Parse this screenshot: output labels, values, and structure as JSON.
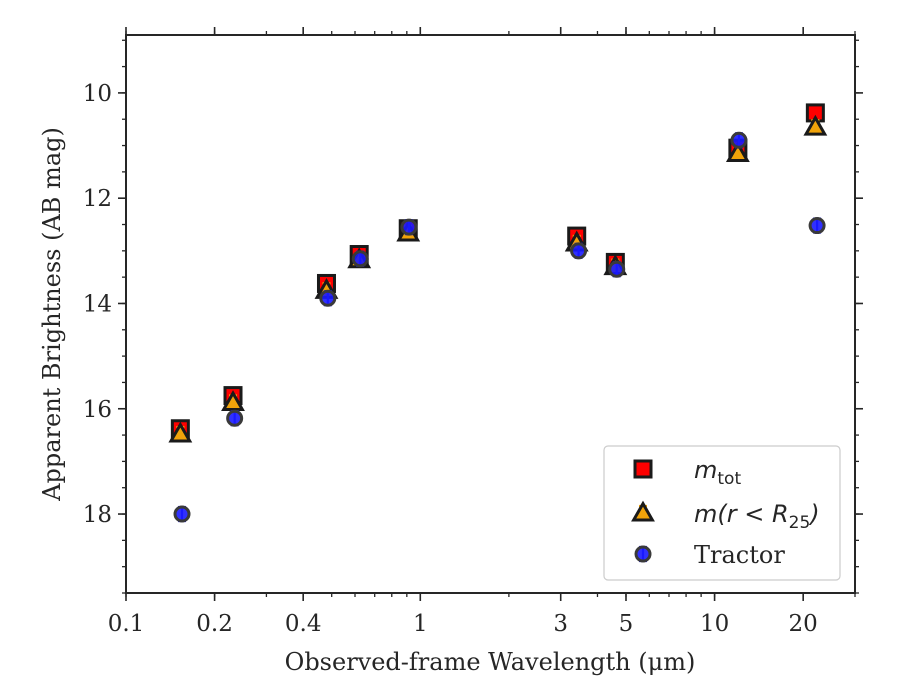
{
  "chart_data": {
    "type": "scatter",
    "title": "",
    "xlabel_prefix": "Observed-frame Wavelength (",
    "xlabel_unit": "μm",
    "xlabel_suffix": ")",
    "ylabel": "Apparent Brightness (AB mag)",
    "xscale": "log",
    "xlim": [
      0.1,
      30
    ],
    "ylim": [
      19.5,
      8.9
    ],
    "y_inverted": true,
    "xticks": [
      {
        "value": 0.1,
        "label": "0.1"
      },
      {
        "value": 0.2,
        "label": "0.2"
      },
      {
        "value": 0.4,
        "label": "0.4"
      },
      {
        "value": 1,
        "label": "1"
      },
      {
        "value": 3,
        "label": "3"
      },
      {
        "value": 5,
        "label": "5"
      },
      {
        "value": 10,
        "label": "10"
      },
      {
        "value": 20,
        "label": "20"
      }
    ],
    "yticks": [
      {
        "value": 10,
        "label": "10"
      },
      {
        "value": 12,
        "label": "12"
      },
      {
        "value": 14,
        "label": "14"
      },
      {
        "value": 16,
        "label": "16"
      },
      {
        "value": 18,
        "label": "18"
      }
    ],
    "legend_position": "bottom-right",
    "series": [
      {
        "name_main": "m",
        "name_sub": "tot",
        "marker": "square",
        "color": "#ff0000",
        "edge": "#1a1a1a",
        "x": [
          0.153,
          0.231,
          0.48,
          0.62,
          0.91,
          3.4,
          4.6,
          12.0,
          22.0
        ],
        "y": [
          16.38,
          15.75,
          13.62,
          13.07,
          12.58,
          12.72,
          13.22,
          11.05,
          10.38
        ]
      },
      {
        "name_main": "m(r < R",
        "name_sub": "25",
        "name_end": ")",
        "marker": "triangle",
        "color": "#f0a30a",
        "edge": "#1a1a1a",
        "x": [
          0.153,
          0.231,
          0.48,
          0.62,
          0.91,
          3.4,
          4.6,
          12.0,
          22.0
        ],
        "y": [
          16.48,
          15.88,
          13.75,
          13.17,
          12.66,
          12.85,
          13.3,
          11.15,
          10.65
        ]
      },
      {
        "name": "Tractor",
        "marker": "circle",
        "color": "#1a1aff",
        "edge": "#3a3a3a",
        "x": [
          0.155,
          0.234,
          0.485,
          0.625,
          0.915,
          3.45,
          4.65,
          12.1,
          22.3
        ],
        "y": [
          18.0,
          16.18,
          13.9,
          13.15,
          12.55,
          13.0,
          13.35,
          10.9,
          12.52
        ]
      }
    ]
  }
}
